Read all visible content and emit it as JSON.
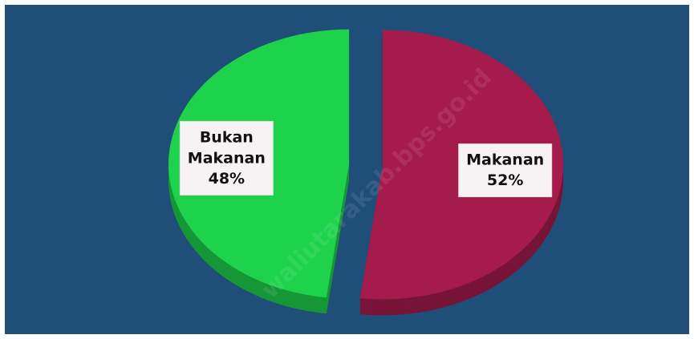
{
  "chart_data": {
    "type": "pie",
    "categories": [
      "Makanan",
      "Bukan Makanan"
    ],
    "values": [
      52,
      48
    ],
    "value_labels": [
      "52%",
      "48%"
    ],
    "colors": [
      "#a51c4c",
      "#1fd24c"
    ],
    "start_angle": 0,
    "direction": "clockwise",
    "exploded": true,
    "watermark": "waliutarakab.bps.go.id"
  }
}
